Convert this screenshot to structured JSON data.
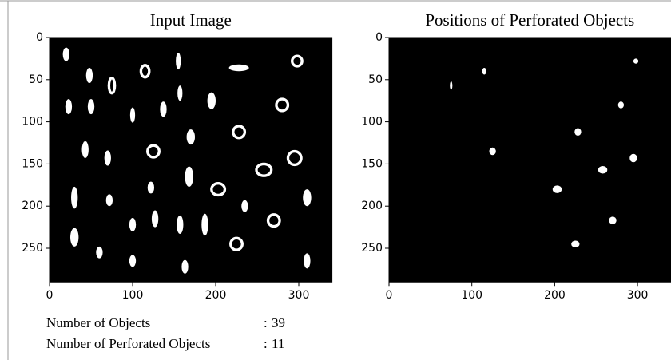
{
  "panels": [
    {
      "title": "Input Image",
      "xlim": [
        0,
        340
      ],
      "ylim": [
        290,
        0
      ],
      "xticks": [
        0,
        100,
        200,
        300
      ],
      "yticks": [
        0,
        50,
        100,
        150,
        200,
        250
      ]
    },
    {
      "title": "Positions of Perforated Objects",
      "xlim": [
        0,
        340
      ],
      "ylim": [
        290,
        0
      ],
      "xticks": [
        0,
        100,
        200,
        300
      ],
      "yticks": [
        0,
        50,
        100,
        150,
        200,
        250
      ]
    }
  ],
  "stats": [
    [
      "Number of Objects",
      ":",
      39
    ],
    [
      "Number of Perforated Objects",
      ":",
      11
    ]
  ]
}
